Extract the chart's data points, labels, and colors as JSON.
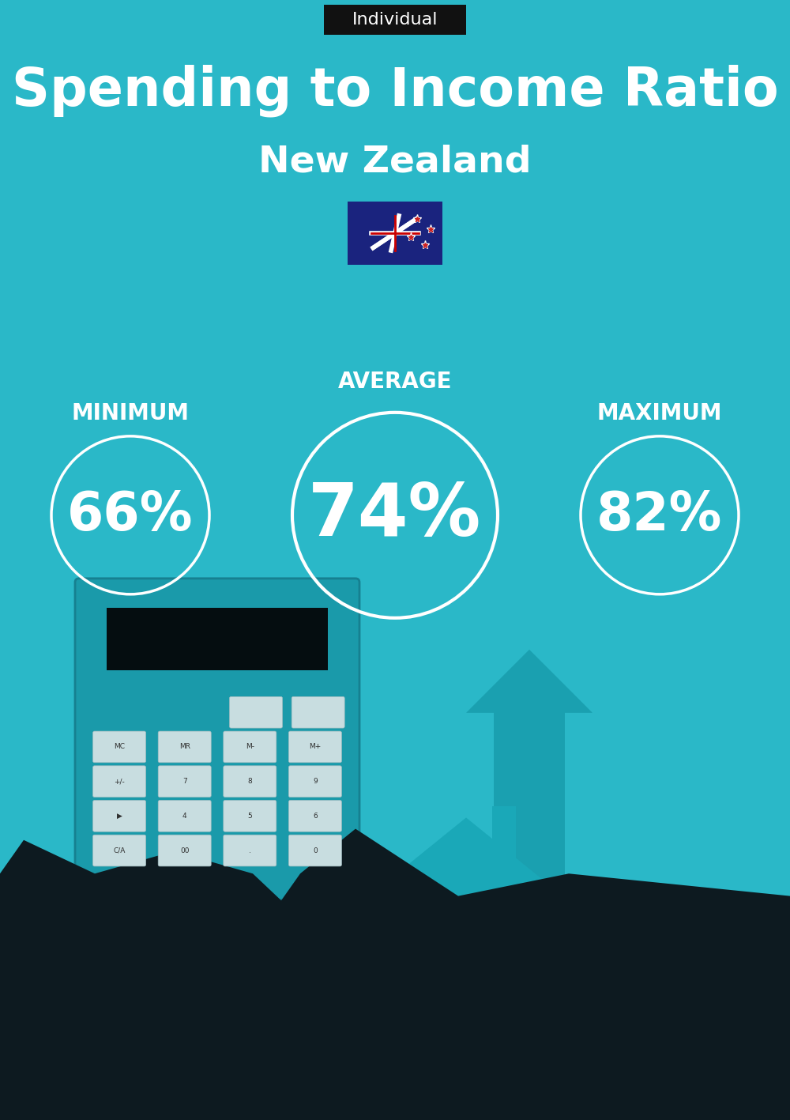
{
  "bg_color": "#2ab8c8",
  "title": "Spending to Income Ratio",
  "subtitle": "New Zealand",
  "tag_text": "Individual",
  "tag_bg": "#111111",
  "tag_color": "#ffffff",
  "min_label": "MINIMUM",
  "avg_label": "AVERAGE",
  "max_label": "MAXIMUM",
  "min_value": "66%",
  "avg_value": "74%",
  "max_value": "82%",
  "circle_color": "white",
  "text_color": "white",
  "title_fontsize": 48,
  "subtitle_fontsize": 34,
  "label_fontsize": 20,
  "min_val_fontsize": 48,
  "avg_val_fontsize": 66,
  "max_val_fontsize": 48,
  "tag_fontsize": 16,
  "arrow_color": "#1aa0b0",
  "house_color": "#1aa8b8",
  "calc_color": "#1a9aaa",
  "dark_color": "#0d1a20",
  "cuff_color": "#40c8d8",
  "fig_w": 10.0,
  "fig_h": 14.17,
  "dpi": 100
}
